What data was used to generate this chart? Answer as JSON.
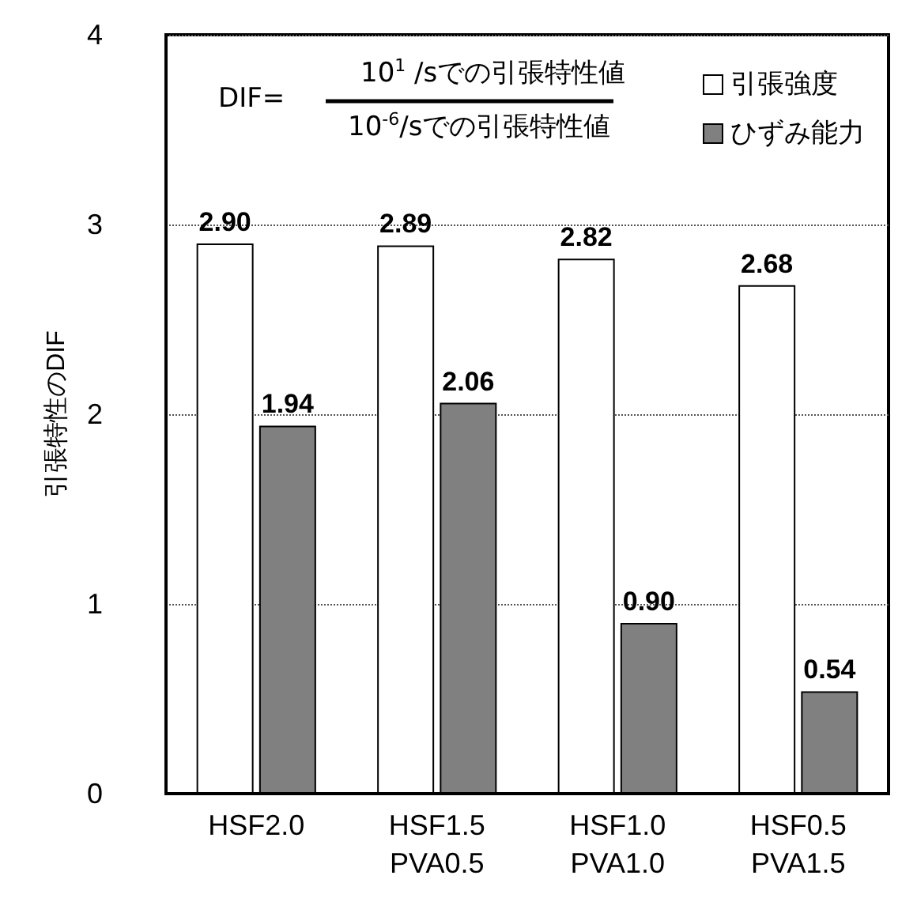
{
  "chart_data": {
    "type": "bar",
    "ylabel": "引張特性のDIF",
    "categories": [
      "HSF2.0",
      "HSF1.5\nPVA0.5",
      "HSF1.0\nPVA1.0",
      "HSF0.5\nPVA1.5"
    ],
    "series": [
      {
        "name": "引張強度",
        "color": "#ffffff",
        "values": [
          2.9,
          2.89,
          2.82,
          2.68
        ],
        "value_labels": [
          "2.90",
          "2.89",
          "2.82",
          "2.68"
        ]
      },
      {
        "name": "ひずみ能力",
        "color": "#808080",
        "values": [
          1.94,
          2.06,
          0.9,
          0.54
        ],
        "value_labels": [
          "1.94",
          "2.06",
          "0.90",
          "0.54"
        ]
      }
    ],
    "ylim": [
      0,
      4
    ],
    "yticks": [
      0,
      1,
      2,
      3,
      4
    ],
    "grid": "y",
    "legend": "top right",
    "annotations": [
      "DIF=",
      "10$^{1}$ /sでの引張特性値",
      "10$^{-6}$/sでの引張特性値"
    ]
  }
}
